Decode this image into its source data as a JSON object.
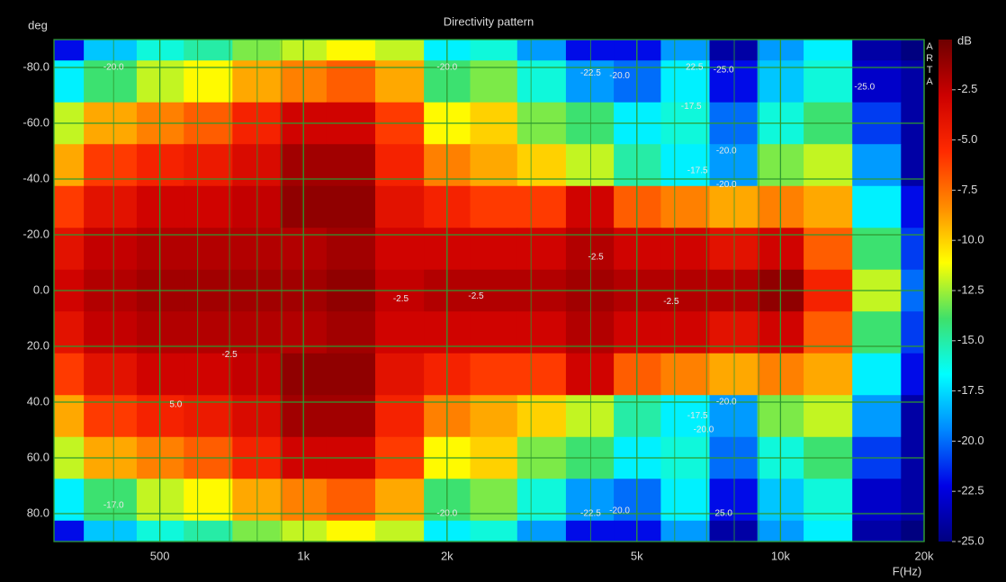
{
  "chart_data": {
    "type": "heatmap",
    "title": "Directivity pattern",
    "x_label": "F(Hz)",
    "y_label": "deg",
    "colorbar_label": "dB",
    "watermark": "ARTA",
    "x_log": true,
    "grid": true,
    "grid_color": "#2f9a2f",
    "x": [
      300,
      400,
      500,
      630,
      800,
      1000,
      1250,
      1600,
      2000,
      2500,
      3150,
      4000,
      5000,
      6300,
      8000,
      10000,
      12500,
      16000,
      20000
    ],
    "y": [
      -90,
      -75,
      -60,
      -45,
      -30,
      -15,
      0,
      15,
      30,
      45,
      60,
      75,
      90
    ],
    "z": [
      [
        -22,
        -18,
        -16,
        -15,
        -13,
        -12,
        -11,
        -12,
        -17,
        -16,
        -19,
        -22,
        -22,
        -19,
        -24,
        -19,
        -17,
        -24,
        -25
      ],
      [
        -17,
        -14,
        -12,
        -11,
        -9,
        -8,
        -7,
        -9,
        -14,
        -13,
        -16,
        -19,
        -20,
        -17,
        -22,
        -18,
        -16,
        -23,
        -24
      ],
      [
        -12,
        -9,
        -8,
        -7,
        -5,
        -3,
        -3,
        -6,
        -11,
        -10,
        -13,
        -14,
        -17,
        -16,
        -20,
        -16,
        -14,
        -21,
        -24
      ],
      [
        -9,
        -6,
        -5,
        -4.5,
        -3.5,
        -1.5,
        -1.5,
        -5,
        -8,
        -9,
        -10,
        -12,
        -15,
        -17,
        -19,
        -13,
        -12,
        -19,
        -24
      ],
      [
        -6,
        -4,
        -3,
        -3,
        -2.5,
        -1,
        -1,
        -4,
        -5,
        -6,
        -6,
        -3,
        -7,
        -8,
        -9,
        -8,
        -9,
        -17,
        -22
      ],
      [
        -4,
        -2.5,
        -2,
        -2,
        -2,
        -2,
        -1.5,
        -3,
        -3,
        -3,
        -3,
        -2,
        -3,
        -3,
        -4,
        -3,
        -7,
        -14,
        -21
      ],
      [
        -3,
        -2,
        -1.5,
        -1.5,
        -1.5,
        -1.5,
        -1,
        -2.5,
        -2,
        -2,
        -2,
        -1.5,
        -2,
        -2,
        -2,
        -1,
        -5,
        -12,
        -20
      ],
      [
        -4,
        -2.5,
        -2,
        -2,
        -2,
        -2,
        -1.5,
        -3,
        -3,
        -3,
        -3,
        -2,
        -3,
        -3,
        -4,
        -3,
        -7,
        -14,
        -21
      ],
      [
        -6,
        -4,
        -3,
        -3,
        -2.5,
        -1,
        -1,
        -4,
        -5,
        -6,
        -6,
        -3,
        -7,
        -8,
        -9,
        -8,
        -9,
        -17,
        -22
      ],
      [
        -9,
        -6,
        -5,
        -4.5,
        -3.5,
        -1.5,
        -1.5,
        -5,
        -8,
        -9,
        -10,
        -12,
        -15,
        -17,
        -19,
        -13,
        -12,
        -19,
        -24
      ],
      [
        -12,
        -9,
        -8,
        -7,
        -5,
        -3,
        -3,
        -6,
        -11,
        -10,
        -13,
        -14,
        -17,
        -16,
        -20,
        -16,
        -14,
        -21,
        -24
      ],
      [
        -17,
        -14,
        -12,
        -11,
        -9,
        -8,
        -7,
        -9,
        -14,
        -13,
        -16,
        -19,
        -20,
        -17,
        -22,
        -18,
        -16,
        -23,
        -24
      ],
      [
        -22,
        -18,
        -16,
        -15,
        -13,
        -12,
        -11,
        -12,
        -17,
        -16,
        -19,
        -22,
        -22,
        -19,
        -24,
        -19,
        -17,
        -24,
        -25
      ]
    ],
    "xlim": [
      300,
      20000
    ],
    "xticks": [
      {
        "value": 500,
        "label": "500"
      },
      {
        "value": 1000,
        "label": "1k"
      },
      {
        "value": 2000,
        "label": "2k"
      },
      {
        "value": 5000,
        "label": "5k"
      },
      {
        "value": 10000,
        "label": "10k"
      },
      {
        "value": 20000,
        "label": "20k"
      }
    ],
    "xminor": [
      400,
      600,
      700,
      800,
      900,
      3000,
      4000,
      6000,
      7000,
      8000,
      9000
    ],
    "ylim": [
      -90,
      90
    ],
    "yticks": [
      {
        "value": -80,
        "label": "-80.0"
      },
      {
        "value": -60,
        "label": "-60.0"
      },
      {
        "value": -40,
        "label": "-40.0"
      },
      {
        "value": -20,
        "label": "-20.0"
      },
      {
        "value": 0,
        "label": "0.0"
      },
      {
        "value": 20,
        "label": "20.0"
      },
      {
        "value": 40,
        "label": "40.0"
      },
      {
        "value": 60,
        "label": "60.0"
      },
      {
        "value": 80,
        "label": "80.0"
      }
    ],
    "zlim": [
      -25,
      0
    ],
    "zticks": [
      {
        "value": -2.5,
        "label": "-2.5"
      },
      {
        "value": -5,
        "label": "-5.0"
      },
      {
        "value": -7.5,
        "label": "-7.5"
      },
      {
        "value": -10,
        "label": "-10.0"
      },
      {
        "value": -12.5,
        "label": "-12.5"
      },
      {
        "value": -15,
        "label": "-15.0"
      },
      {
        "value": -17.5,
        "label": "-17.5"
      },
      {
        "value": -20,
        "label": "-20.0"
      },
      {
        "value": -22.5,
        "label": "-22.5"
      },
      {
        "value": -25,
        "label": "-25.0"
      }
    ],
    "colorscale": [
      "#6e0000",
      "#cc0000",
      "#ff2a00",
      "#ff8c00",
      "#ffff00",
      "#3fe06a",
      "#00ffff",
      "#0088ff",
      "#0000e6",
      "#000080"
    ],
    "annotations": [
      {
        "text": "-20.0",
        "x": 400,
        "y": -80
      },
      {
        "text": "-20.0",
        "x": 2000,
        "y": -80
      },
      {
        "text": "-22.5",
        "x": 4000,
        "y": -78
      },
      {
        "text": "-20.0",
        "x": 4600,
        "y": -77
      },
      {
        "text": "22.5",
        "x": 6600,
        "y": -80
      },
      {
        "text": "-25.0",
        "x": 7600,
        "y": -79
      },
      {
        "text": "-25.0",
        "x": 15000,
        "y": -73
      },
      {
        "text": "-17.5",
        "x": 6500,
        "y": -66
      },
      {
        "text": "-20.0",
        "x": 7700,
        "y": -50
      },
      {
        "text": "-17.5",
        "x": 6700,
        "y": -43
      },
      {
        "text": "-20.0",
        "x": 7700,
        "y": -38
      },
      {
        "text": "-2.5",
        "x": 4100,
        "y": -12
      },
      {
        "text": "-2.5",
        "x": 1600,
        "y": 3
      },
      {
        "text": "-2.5",
        "x": 2300,
        "y": 2
      },
      {
        "text": "-2.5",
        "x": 5900,
        "y": 4
      },
      {
        "text": "-2.5",
        "x": 700,
        "y": 23
      },
      {
        "text": "5.0",
        "x": 540,
        "y": 41
      },
      {
        "text": "-20.0",
        "x": 7700,
        "y": 40
      },
      {
        "text": "-17.5",
        "x": 6700,
        "y": 45
      },
      {
        "text": "-20.0",
        "x": 6900,
        "y": 50
      },
      {
        "text": "-17.0",
        "x": 400,
        "y": 77
      },
      {
        "text": "-20.0",
        "x": 2000,
        "y": 80
      },
      {
        "text": "-22.5",
        "x": 4000,
        "y": 80
      },
      {
        "text": "-20.0",
        "x": 4600,
        "y": 79
      },
      {
        "text": "25.0",
        "x": 7600,
        "y": 80
      }
    ]
  }
}
